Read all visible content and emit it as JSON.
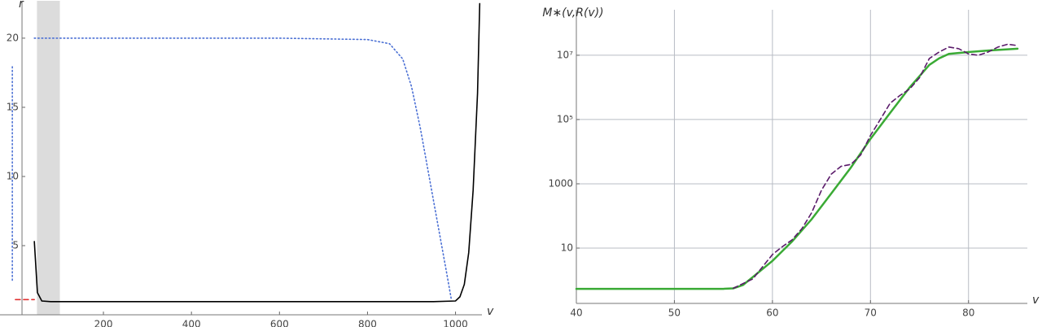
{
  "chart_data": [
    {
      "type": "line",
      "x_label": "v",
      "y_label": "r",
      "xlim": [
        -35,
        1060
      ],
      "ylim": [
        0,
        22.7
      ],
      "xticks": [
        200,
        400,
        600,
        800,
        1000
      ],
      "yticks": [
        5,
        10,
        15,
        20
      ],
      "grid": false,
      "band": {
        "x": [
          49,
          101
        ],
        "color": "#dcdcdc"
      },
      "series": [
        {
          "style": "dotted",
          "color": "#4a6fd4",
          "x": [
            -7,
            -7
          ],
          "values": [
            2.5,
            18
          ]
        },
        {
          "style": "dashed",
          "color": "#e03030",
          "x": [
            0,
            43
          ],
          "values": [
            1.1,
            1.1
          ]
        },
        {
          "style": "dotted",
          "color": "#4a6fd4",
          "x": [
            43,
            200,
            400,
            600,
            800,
            850,
            880,
            900,
            920,
            940,
            960,
            980,
            990
          ],
          "values": [
            20,
            20,
            20,
            20,
            19.9,
            19.6,
            18.5,
            16.5,
            13.5,
            10,
            6.5,
            3,
            1.2
          ]
        },
        {
          "style": "solid",
          "color": "#000000",
          "x": [
            43,
            50,
            60,
            80,
            100,
            200,
            400,
            600,
            800,
            950,
            1000,
            1010,
            1020,
            1030,
            1040,
            1050,
            1055
          ],
          "values": [
            5.3,
            1.6,
            1.0,
            0.95,
            0.95,
            0.95,
            0.95,
            0.95,
            0.95,
            0.95,
            1.0,
            1.3,
            2.2,
            4.5,
            9,
            16,
            22.5
          ]
        }
      ]
    },
    {
      "type": "line",
      "x_label": "v",
      "y_label": "M∗(v,R(v))",
      "log_y": true,
      "xlim": [
        40,
        86
      ],
      "ylim": [
        0.19,
        260000000
      ],
      "xticks": [
        40,
        50,
        60,
        70,
        80
      ],
      "yticks": [
        10,
        1000,
        {
          "value": 100000,
          "label": "10⁵"
        },
        {
          "value": 10000000,
          "label": "10⁷"
        }
      ],
      "grid": true,
      "series": [
        {
          "style": "solid",
          "color": "#3aaa35",
          "x": [
            40,
            50,
            55,
            56,
            57,
            58,
            60,
            62,
            64,
            66,
            68,
            70,
            72,
            74,
            76,
            77,
            78,
            80,
            82,
            85
          ],
          "values": [
            0.54,
            0.54,
            0.54,
            0.56,
            0.71,
            1.26,
            4,
            16,
            79,
            500,
            3200,
            25000,
            160000,
            1000000,
            5000000,
            8000000,
            11000000,
            12600000,
            14000000,
            16000000
          ]
        },
        {
          "style": "dashed",
          "color": "#5a1a6a",
          "x": [
            56,
            58,
            60,
            61,
            62,
            63,
            64,
            65,
            66,
            67,
            68,
            69,
            70,
            71,
            72,
            73,
            74,
            75,
            76,
            77,
            78,
            79,
            80,
            81,
            82,
            83,
            84,
            85
          ],
          "values": [
            0.56,
            1.1,
            6.3,
            11,
            18,
            40,
            126,
            630,
            2000,
            3500,
            4000,
            7900,
            32000,
            100000,
            320000,
            560000,
            890000,
            2000000,
            7900000,
            12600000,
            18000000,
            16000000,
            11000000,
            10000000,
            12600000,
            18000000,
            22000000,
            20000000
          ]
        }
      ]
    }
  ]
}
